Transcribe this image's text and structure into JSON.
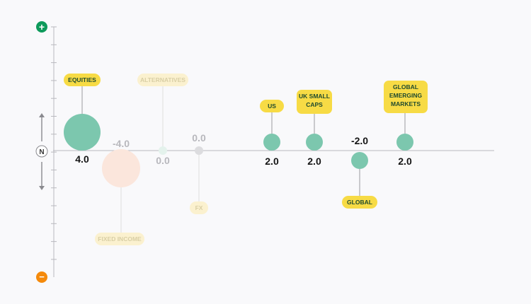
{
  "scale": {
    "top_symbol": "+",
    "middle_symbol": "N",
    "bottom_symbol": "−",
    "top_color": "#0e9a5b",
    "bottom_color": "#f58a0b"
  },
  "colors": {
    "bubble_active": "#7cc7ae",
    "label_bg": "#f7db45",
    "label_text": "#1f4a2e",
    "axis": "#b9b9bf",
    "value_text": "#151515",
    "value_faded": "#b8b8bd",
    "faded_label_bg": "#fbf1cf",
    "faded_label_text": "#d9cfa5",
    "fixed_income_bubble": "#fbe6dc",
    "alternatives_bubble": "#e4f2ec",
    "fx_bubble": "#dcdcdf"
  },
  "chart_data": {
    "type": "scatter",
    "title": "",
    "xlabel": "",
    "ylabel": "",
    "ylim": [
      -4,
      4
    ],
    "grid": false,
    "series": [
      {
        "category": "EQUITIES",
        "value": 4.0,
        "value_label": "4.0",
        "state": "active",
        "size": "large"
      },
      {
        "category": "FIXED INCOME",
        "value": -4.0,
        "value_label": "-4.0",
        "state": "faded",
        "size": "large"
      },
      {
        "category": "ALTERNATIVES",
        "value": 0.0,
        "value_label": "0.0",
        "state": "faded",
        "size": "small"
      },
      {
        "category": "FX",
        "value": 0.0,
        "value_label": "0.0",
        "state": "faded",
        "size": "small"
      },
      {
        "category": "US",
        "value": 2.0,
        "value_label": "2.0",
        "state": "active",
        "size": "medium"
      },
      {
        "category": "UK SMALL CAPS",
        "value": 2.0,
        "value_label": "2.0",
        "state": "active",
        "size": "medium"
      },
      {
        "category": "GLOBAL",
        "value": -2.0,
        "value_label": "-2.0",
        "state": "active",
        "size": "medium"
      },
      {
        "category": "GLOBAL EMERGING MARKETS",
        "value": 2.0,
        "value_label": "2.0",
        "state": "active",
        "size": "medium"
      }
    ]
  }
}
